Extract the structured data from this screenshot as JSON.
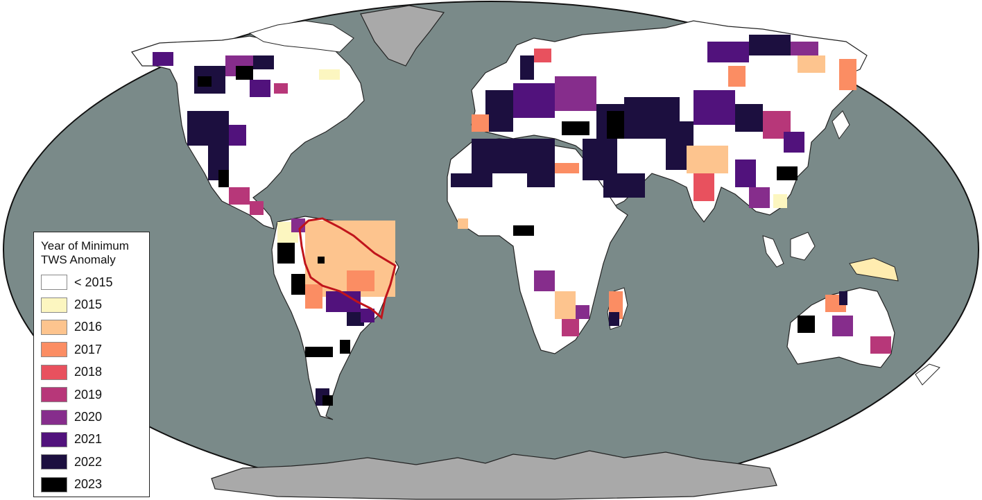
{
  "legend": {
    "title_line1": "Year of Minimum",
    "title_line2": "TWS Anomaly",
    "items": [
      {
        "label": "< 2015",
        "color": "#ffffff"
      },
      {
        "label": "2015",
        "color": "#fcf6c0"
      },
      {
        "label": "2016",
        "color": "#fdc48e"
      },
      {
        "label": "2017",
        "color": "#fb8d63"
      },
      {
        "label": "2018",
        "color": "#e8515e"
      },
      {
        "label": "2019",
        "color": "#b73779"
      },
      {
        "label": "2020",
        "color": "#862d8c"
      },
      {
        "label": "2021",
        "color": "#51127c"
      },
      {
        "label": "2022",
        "color": "#1c0f3f"
      },
      {
        "label": "2023",
        "color": "#000000"
      }
    ]
  },
  "colors": {
    "ocean": "#7a8a89",
    "antarctica_greenland": "#a9a9a9",
    "land_default": "#ffffff",
    "highlight_outline": "#c0141b"
  },
  "highlighted_region": "Amazon basin (outlined in red)"
}
